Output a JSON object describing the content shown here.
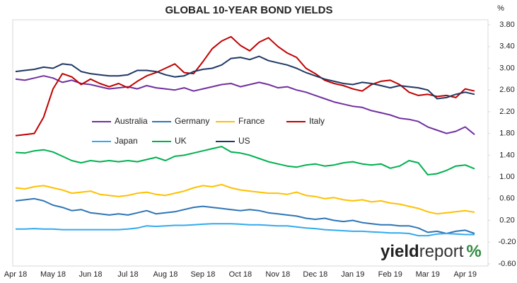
{
  "chart_data": {
    "type": "line",
    "title": "GLOBAL 10-YEAR BOND YIELDS",
    "y_unit": "%",
    "categories": [
      "Apr 18",
      null,
      null,
      null,
      "May 18",
      null,
      null,
      null,
      "Jun 18",
      null,
      null,
      null,
      "Jul 18",
      null,
      null,
      null,
      "Aug 18",
      null,
      null,
      null,
      "Sep 18",
      null,
      null,
      null,
      "Oct 18",
      null,
      null,
      null,
      "Nov 18",
      null,
      null,
      null,
      "Dec 18",
      null,
      null,
      null,
      "Jan 19",
      null,
      null,
      null,
      "Feb 19",
      null,
      null,
      null,
      "Mar 19",
      null,
      null,
      null,
      "Apr 19",
      null
    ],
    "series": [
      {
        "name": "Australia",
        "color": "#7030a0",
        "values": [
          2.8,
          2.78,
          2.82,
          2.86,
          2.82,
          2.74,
          2.78,
          2.72,
          2.7,
          2.66,
          2.62,
          2.64,
          2.66,
          2.62,
          2.68,
          2.64,
          2.62,
          2.6,
          2.64,
          2.58,
          2.62,
          2.66,
          2.7,
          2.72,
          2.66,
          2.7,
          2.74,
          2.7,
          2.64,
          2.66,
          2.6,
          2.56,
          2.5,
          2.44,
          2.38,
          2.34,
          2.3,
          2.28,
          2.22,
          2.18,
          2.14,
          2.08,
          2.06,
          2.02,
          1.92,
          1.86,
          1.8,
          1.84,
          1.92,
          1.78
        ]
      },
      {
        "name": "Germany",
        "color": "#2e75b6",
        "values": [
          0.56,
          0.58,
          0.6,
          0.56,
          0.48,
          0.44,
          0.38,
          0.4,
          0.34,
          0.32,
          0.3,
          0.32,
          0.3,
          0.34,
          0.38,
          0.32,
          0.34,
          0.36,
          0.4,
          0.44,
          0.46,
          0.44,
          0.42,
          0.4,
          0.38,
          0.4,
          0.38,
          0.34,
          0.32,
          0.3,
          0.28,
          0.24,
          0.22,
          0.24,
          0.2,
          0.18,
          0.2,
          0.16,
          0.14,
          0.12,
          0.12,
          0.1,
          0.1,
          0.06,
          -0.02,
          0.0,
          -0.04,
          0.0,
          0.02,
          -0.04
        ]
      },
      {
        "name": "France",
        "color": "#ffc000",
        "values": [
          0.8,
          0.78,
          0.82,
          0.84,
          0.8,
          0.76,
          0.7,
          0.72,
          0.74,
          0.68,
          0.66,
          0.64,
          0.66,
          0.7,
          0.72,
          0.68,
          0.66,
          0.7,
          0.74,
          0.8,
          0.84,
          0.82,
          0.86,
          0.8,
          0.76,
          0.74,
          0.72,
          0.7,
          0.7,
          0.68,
          0.72,
          0.66,
          0.64,
          0.6,
          0.62,
          0.58,
          0.56,
          0.58,
          0.54,
          0.56,
          0.52,
          0.5,
          0.46,
          0.42,
          0.36,
          0.32,
          0.34,
          0.36,
          0.38,
          0.35
        ]
      },
      {
        "name": "Italy",
        "color": "#c00000",
        "values": [
          1.76,
          1.78,
          1.8,
          2.1,
          2.62,
          2.9,
          2.84,
          2.7,
          2.8,
          2.72,
          2.66,
          2.72,
          2.64,
          2.76,
          2.86,
          2.92,
          3.0,
          3.08,
          2.92,
          2.9,
          3.12,
          3.36,
          3.5,
          3.58,
          3.42,
          3.32,
          3.48,
          3.56,
          3.4,
          3.28,
          3.2,
          3.0,
          2.9,
          2.78,
          2.72,
          2.68,
          2.62,
          2.58,
          2.7,
          2.76,
          2.78,
          2.7,
          2.56,
          2.5,
          2.52,
          2.48,
          2.5,
          2.46,
          2.62,
          2.58
        ]
      },
      {
        "name": "Japan",
        "color": "#33aaee",
        "values": [
          0.04,
          0.04,
          0.05,
          0.04,
          0.04,
          0.03,
          0.03,
          0.03,
          0.03,
          0.03,
          0.03,
          0.03,
          0.04,
          0.06,
          0.1,
          0.09,
          0.1,
          0.11,
          0.11,
          0.12,
          0.13,
          0.14,
          0.14,
          0.14,
          0.13,
          0.12,
          0.12,
          0.11,
          0.1,
          0.1,
          0.08,
          0.06,
          0.05,
          0.03,
          0.02,
          0.01,
          0.0,
          0.0,
          -0.01,
          -0.02,
          -0.03,
          -0.03,
          -0.04,
          -0.08,
          -0.08,
          -0.05,
          -0.04,
          -0.05,
          -0.06,
          -0.06
        ]
      },
      {
        "name": "UK",
        "color": "#00b050",
        "values": [
          1.45,
          1.44,
          1.48,
          1.5,
          1.46,
          1.38,
          1.3,
          1.26,
          1.3,
          1.28,
          1.3,
          1.28,
          1.3,
          1.28,
          1.32,
          1.36,
          1.3,
          1.38,
          1.4,
          1.44,
          1.48,
          1.52,
          1.56,
          1.46,
          1.44,
          1.4,
          1.34,
          1.28,
          1.24,
          1.2,
          1.18,
          1.22,
          1.24,
          1.2,
          1.22,
          1.26,
          1.28,
          1.24,
          1.22,
          1.24,
          1.16,
          1.2,
          1.3,
          1.26,
          1.04,
          1.06,
          1.12,
          1.2,
          1.22,
          1.15
        ]
      },
      {
        "name": "US",
        "color": "#1f3864",
        "values": [
          2.94,
          2.96,
          2.98,
          3.02,
          3.0,
          3.08,
          3.06,
          2.94,
          2.9,
          2.88,
          2.86,
          2.86,
          2.88,
          2.96,
          2.96,
          2.94,
          2.88,
          2.84,
          2.86,
          2.94,
          2.98,
          3.0,
          3.06,
          3.18,
          3.2,
          3.16,
          3.22,
          3.14,
          3.1,
          3.06,
          3.0,
          2.92,
          2.86,
          2.8,
          2.76,
          2.72,
          2.7,
          2.74,
          2.72,
          2.68,
          2.64,
          2.68,
          2.66,
          2.64,
          2.6,
          2.44,
          2.46,
          2.52,
          2.56,
          2.52
        ]
      }
    ],
    "ylim": [
      -0.6,
      3.8
    ],
    "yticks": [
      {
        "value": -0.6,
        "label": "-0.60"
      },
      {
        "value": -0.2,
        "label": "-0.20"
      },
      {
        "value": 0.2,
        "label": "0.20"
      },
      {
        "value": 0.6,
        "label": "0.60"
      },
      {
        "value": 1,
        "label": "1.00"
      },
      {
        "value": 1.4,
        "label": "1.40"
      },
      {
        "value": 1.8,
        "label": "1.80"
      },
      {
        "value": 2.2,
        "label": "2.20"
      },
      {
        "value": 2.6,
        "label": "2.60"
      },
      {
        "value": 3,
        "label": "3.00"
      },
      {
        "value": 3.4,
        "label": "3.40"
      },
      {
        "value": 3.8,
        "label": "3.80"
      }
    ],
    "grid": false,
    "legend": "inside",
    "y_axis_side": "right"
  },
  "brand": [
    "yield",
    "report",
    "%"
  ]
}
